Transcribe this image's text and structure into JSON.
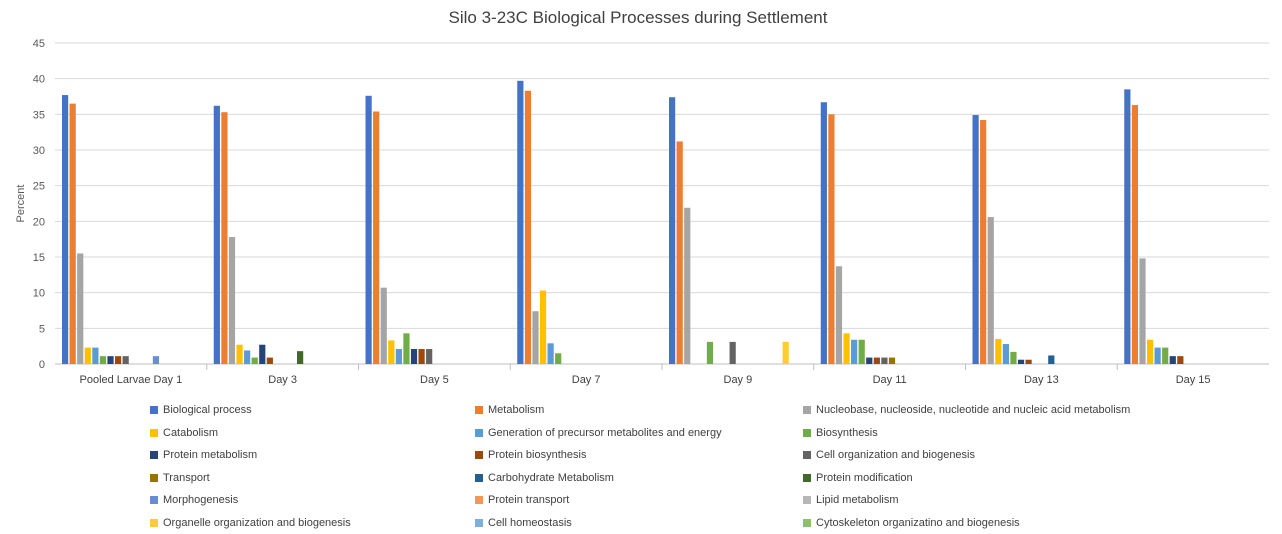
{
  "chart_data": {
    "type": "bar",
    "title": "Silo 3-23C Biological Processes during Settlement",
    "xlabel": "",
    "ylabel": "Percent",
    "ylim": [
      0,
      45
    ],
    "yticks": [
      0,
      5,
      10,
      15,
      20,
      25,
      30,
      35,
      40,
      45
    ],
    "grid": true,
    "legend_position": "bottom",
    "categories": [
      "Pooled Larvae Day 1",
      "Day 3",
      "Day 5",
      "Day 7",
      "Day 9",
      "Day 11",
      "Day 13",
      "Day 15"
    ],
    "series": [
      {
        "name": "Biological process",
        "color": "#4472C4",
        "values": [
          37.7,
          36.2,
          37.6,
          39.7,
          37.4,
          36.7,
          34.9,
          38.5
        ]
      },
      {
        "name": "Metabolism",
        "color": "#ED7D31",
        "values": [
          36.5,
          35.3,
          35.4,
          38.3,
          31.2,
          35.0,
          34.2,
          36.3
        ]
      },
      {
        "name": "Nucleobase, nucleoside, nucleotide and nucleic acid metabolism",
        "color": "#A5A5A5",
        "values": [
          15.5,
          17.8,
          10.7,
          7.4,
          21.9,
          13.7,
          20.6,
          14.8
        ]
      },
      {
        "name": "Catabolism",
        "color": "#FFC000",
        "values": [
          2.3,
          2.7,
          3.3,
          10.3,
          0,
          4.3,
          3.5,
          3.4
        ]
      },
      {
        "name": "Generation of precursor metabolites and energy",
        "color": "#5B9BD5",
        "values": [
          2.3,
          1.9,
          2.1,
          2.9,
          0,
          3.4,
          2.8,
          2.3
        ]
      },
      {
        "name": "Biosynthesis",
        "color": "#70AD47",
        "values": [
          1.1,
          0.9,
          4.3,
          1.5,
          3.1,
          3.4,
          1.7,
          2.3
        ]
      },
      {
        "name": "Protein metabolism",
        "color": "#264478",
        "values": [
          1.1,
          2.7,
          2.1,
          0,
          0,
          0.9,
          0.6,
          1.1
        ]
      },
      {
        "name": "Protein biosynthesis",
        "color": "#9E480E",
        "values": [
          1.1,
          0.9,
          2.1,
          0,
          0,
          0.9,
          0.6,
          1.1
        ]
      },
      {
        "name": "Cell organization and biogenesis",
        "color": "#636363",
        "values": [
          1.1,
          0,
          2.1,
          0,
          3.1,
          0.9,
          0,
          0
        ]
      },
      {
        "name": "Transport",
        "color": "#997300",
        "values": [
          0,
          0,
          0,
          0,
          0,
          0.9,
          0,
          0
        ]
      },
      {
        "name": "Carbohydrate Metabolism",
        "color": "#255E91",
        "values": [
          0,
          0,
          0,
          0,
          0,
          0,
          1.2,
          0
        ]
      },
      {
        "name": "Protein modification",
        "color": "#43682B",
        "values": [
          0,
          1.8,
          0,
          0,
          0,
          0,
          0,
          0
        ]
      },
      {
        "name": "Morphogenesis",
        "color": "#698ED0",
        "values": [
          1.1,
          0,
          0,
          0,
          0,
          0,
          0,
          0
        ]
      },
      {
        "name": "Protein transport",
        "color": "#F1975A",
        "values": [
          0,
          0,
          0,
          0,
          0,
          0,
          0,
          0
        ]
      },
      {
        "name": "Lipid metabolism",
        "color": "#B7B7B7",
        "values": [
          0,
          0,
          0,
          0,
          0,
          0,
          0,
          0
        ]
      },
      {
        "name": "Organelle organization and biogenesis",
        "color": "#FFCD33",
        "values": [
          0,
          0,
          0,
          0,
          3.1,
          0,
          0,
          0
        ]
      },
      {
        "name": "Cell homeostasis",
        "color": "#7CAFDD",
        "values": [
          0,
          0,
          0,
          0,
          0,
          0,
          0,
          0
        ]
      },
      {
        "name": "Cytoskeleton organizatino and biogenesis",
        "color": "#8CC168",
        "values": [
          0,
          0,
          0,
          0,
          0,
          0,
          0,
          0
        ]
      }
    ]
  }
}
